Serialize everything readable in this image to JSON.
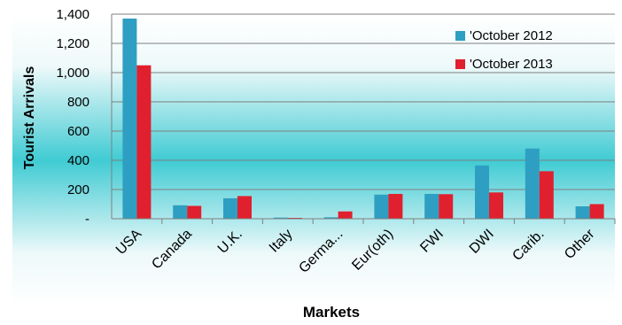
{
  "chart_data": {
    "type": "bar",
    "title": "",
    "xlabel": "Markets",
    "ylabel": "Tourist Arrivals",
    "categories": [
      "USA",
      "Canada",
      "U.K.",
      "Italy",
      "Germa...",
      "Eur(oth)",
      "FWI",
      "DWI",
      "Carib.",
      "Other"
    ],
    "series": [
      {
        "name": "'October 2012",
        "color": "#2E9FC2",
        "values": [
          1370,
          92,
          140,
          8,
          10,
          165,
          170,
          365,
          480,
          85
        ]
      },
      {
        "name": "'October 2013",
        "color": "#E0202E",
        "values": [
          1050,
          88,
          155,
          6,
          50,
          170,
          168,
          180,
          325,
          100
        ]
      }
    ],
    "yticks": [
      0,
      200,
      400,
      600,
      800,
      1000,
      1200,
      1400
    ],
    "ytick_labels": [
      "-",
      "200",
      "400",
      "600",
      "800",
      "1,000",
      "1,200",
      "1,400"
    ],
    "ylim": [
      0,
      1400
    ],
    "grid": true,
    "legend_position": "top-right"
  }
}
